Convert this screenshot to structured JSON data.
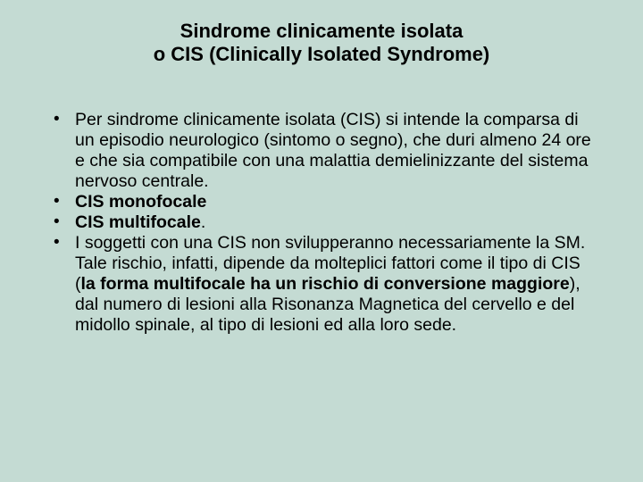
{
  "background_color": "#c4dbd3",
  "text_color": "#000000",
  "font_family": "Arial",
  "title": {
    "line1": "Sindrome clinicamente isolata",
    "line2": "o CIS (Clinically Isolated Syndrome)",
    "fontsize": 22,
    "weight": "bold",
    "align": "center"
  },
  "bullets": {
    "fontsize": 19.5,
    "marker": "•",
    "items": [
      {
        "runs": [
          {
            "text": "Per sindrome clinicamente isolata (CIS) si intende la comparsa di un episodio neurologico (sintomo o segno), che duri almeno 24 ore e che sia compatibile con una malattia demielinizzante del sistema nervoso centrale.",
            "bold": false
          }
        ]
      },
      {
        "runs": [
          {
            "text": " ",
            "bold": false
          },
          {
            "text": "CIS monofocale",
            "bold": true
          }
        ]
      },
      {
        "runs": [
          {
            "text": " ",
            "bold": false
          },
          {
            "text": "CIS multifocale",
            "bold": true
          },
          {
            "text": ".",
            "bold": false
          }
        ]
      },
      {
        "runs": [
          {
            "text": "I soggetti con una CIS non svilupperanno necessariamente la SM. Tale rischio, infatti, dipende da molteplici fattori come il tipo di CIS (",
            "bold": false
          },
          {
            "text": "la forma multifocale ha un rischio di conversione maggiore",
            "bold": true
          },
          {
            "text": "), dal numero di lesioni alla Risonanza Magnetica del cervello e del midollo spinale, al tipo di lesioni ed alla loro sede.",
            "bold": false
          }
        ]
      }
    ]
  }
}
